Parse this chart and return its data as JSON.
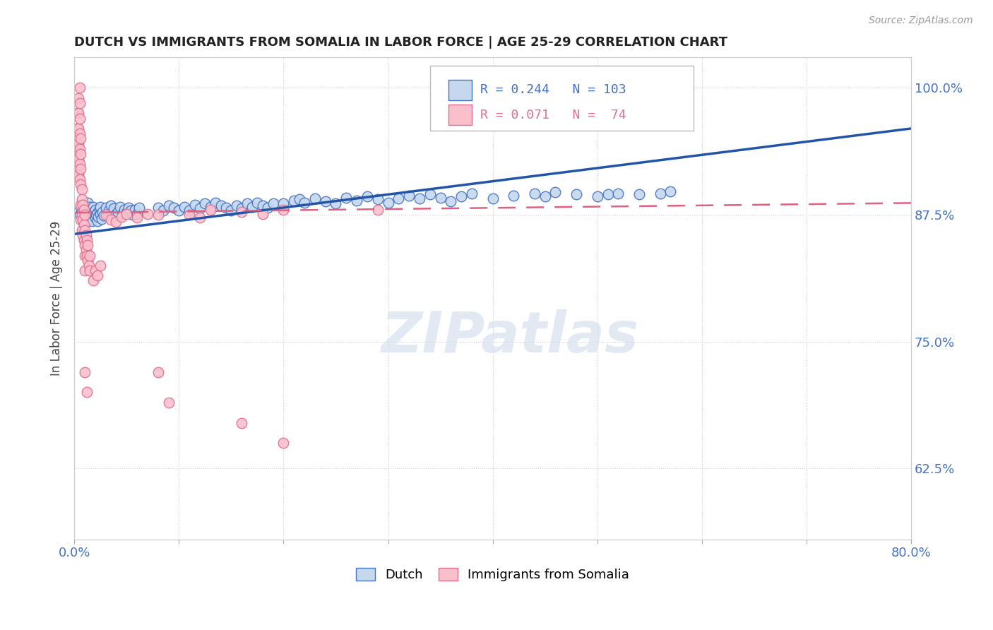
{
  "title": "DUTCH VS IMMIGRANTS FROM SOMALIA IN LABOR FORCE | AGE 25-29 CORRELATION CHART",
  "source": "Source: ZipAtlas.com",
  "ylabel": "In Labor Force | Age 25-29",
  "xlim": [
    0.0,
    0.8
  ],
  "ylim": [
    0.555,
    1.03
  ],
  "ytick_labels": [
    "62.5%",
    "75.0%",
    "87.5%",
    "100.0%"
  ],
  "ytick_values": [
    0.625,
    0.75,
    0.875,
    1.0
  ],
  "R_dutch": 0.244,
  "N_dutch": 103,
  "R_somalia": 0.071,
  "N_somalia": 74,
  "color_dutch_fill": "#c5d8ee",
  "color_dutch_edge": "#4472c4",
  "color_somalia_fill": "#f9c0cc",
  "color_somalia_edge": "#e07090",
  "color_dutch_line": "#2255aa",
  "color_somalia_line": "#e06080",
  "watermark": "ZIPatlas",
  "background_color": "#ffffff",
  "grid_color": "#cccccc",
  "tick_color": "#4472c4",
  "title_color": "#222222",
  "source_color": "#999999"
}
